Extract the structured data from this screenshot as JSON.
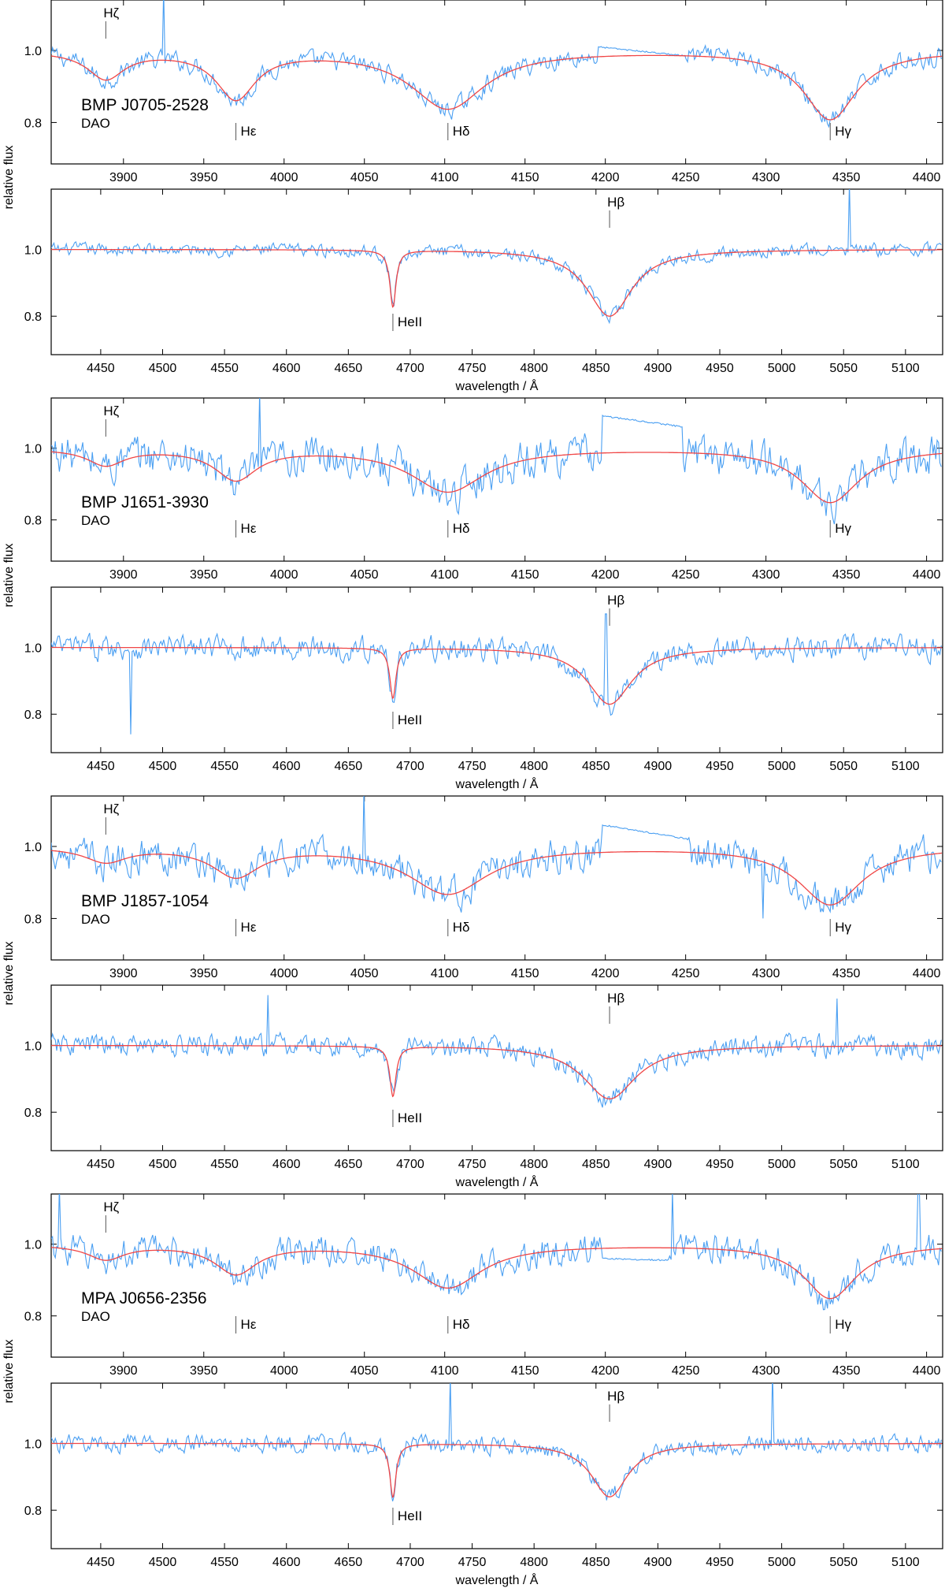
{
  "figure": {
    "ylabel": "relative flux",
    "xlabel": "wavelength / Å"
  },
  "colors": {
    "observed": "#4a9ff2",
    "model": "#f04646",
    "axes": "#000000",
    "marker": "#555555"
  },
  "chart_data": [
    {
      "type": "line",
      "star": "BMP J0705-2528",
      "class": "DAO",
      "panels": [
        {
          "xlim": [
            3855,
            4410
          ],
          "ylim": [
            0.685,
            1.14
          ],
          "xticks": [
            3900,
            3950,
            4000,
            4050,
            4100,
            4150,
            4200,
            4250,
            4300,
            4350,
            4400
          ],
          "yticks": [
            0.8,
            1.0
          ],
          "show_xlabel": false,
          "lines": [
            {
              "label": "Hζ",
              "x": 3889,
              "depth": 0.925,
              "width": 14,
              "pos": "above"
            },
            {
              "label": "Hε",
              "x": 3970,
              "depth": 0.87,
              "width": 15,
              "pos": "below"
            },
            {
              "label": "Hδ",
              "x": 4102,
              "depth": 0.84,
              "width": 28,
              "pos": "below"
            },
            {
              "label": "Hγ",
              "x": 4340,
              "depth": 0.81,
              "width": 20,
              "pos": "below"
            }
          ],
          "noise": 0.022,
          "spikes": [
            {
              "x": 3925,
              "y": 1.17
            }
          ],
          "gap": {
            "x0": 4195,
            "x1": 4250,
            "y0": 1.01,
            "y1": 0.985
          }
        },
        {
          "xlim": [
            4410,
            5130
          ],
          "ylim": [
            0.685,
            1.18
          ],
          "xticks": [
            4450,
            4500,
            4550,
            4600,
            4650,
            4700,
            4750,
            4800,
            4850,
            4900,
            4950,
            5000,
            5050,
            5100
          ],
          "yticks": [
            0.8,
            1.0
          ],
          "show_xlabel": true,
          "lines": [
            {
              "label": "HeII",
              "x": 4686,
              "depth": 0.83,
              "width": 3,
              "pos": "below"
            },
            {
              "label": "Hβ",
              "x": 4861,
              "depth": 0.8,
              "width": 22,
              "pos": "above"
            }
          ],
          "noise": 0.016,
          "spikes": [
            {
              "x": 5055,
              "y": 1.2
            }
          ],
          "gap": null
        }
      ]
    },
    {
      "type": "line",
      "star": "BMP J1651-3930",
      "class": "DAO",
      "panels": [
        {
          "xlim": [
            3855,
            4410
          ],
          "ylim": [
            0.685,
            1.14
          ],
          "xticks": [
            3900,
            3950,
            4000,
            4050,
            4100,
            4150,
            4200,
            4250,
            4300,
            4350,
            4400
          ],
          "yticks": [
            0.8,
            1.0
          ],
          "show_xlabel": false,
          "lines": [
            {
              "label": "Hζ",
              "x": 3889,
              "depth": 0.955,
              "width": 14,
              "pos": "above"
            },
            {
              "label": "Hε",
              "x": 3970,
              "depth": 0.915,
              "width": 16,
              "pos": "below"
            },
            {
              "label": "Hδ",
              "x": 4102,
              "depth": 0.88,
              "width": 28,
              "pos": "below"
            },
            {
              "label": "Hγ",
              "x": 4340,
              "depth": 0.85,
              "width": 22,
              "pos": "below"
            }
          ],
          "noise": 0.045,
          "spikes": [
            {
              "x": 3985,
              "y": 1.16
            }
          ],
          "gap": {
            "x0": 4198,
            "x1": 4248,
            "y0": 1.09,
            "y1": 1.06
          }
        },
        {
          "xlim": [
            4410,
            5130
          ],
          "ylim": [
            0.685,
            1.18
          ],
          "xticks": [
            4450,
            4500,
            4550,
            4600,
            4650,
            4700,
            4750,
            4800,
            4850,
            4900,
            4950,
            5000,
            5050,
            5100
          ],
          "yticks": [
            0.8,
            1.0
          ],
          "show_xlabel": true,
          "lines": [
            {
              "label": "HeII",
              "x": 4686,
              "depth": 0.85,
              "width": 3,
              "pos": "below"
            },
            {
              "label": "Hβ",
              "x": 4861,
              "depth": 0.83,
              "width": 22,
              "pos": "above"
            }
          ],
          "noise": 0.03,
          "spikes": [
            {
              "x": 4474,
              "y": 0.74
            },
            {
              "x": 4858,
              "y": 1.1
            }
          ],
          "gap": null
        }
      ]
    },
    {
      "type": "line",
      "star": "BMP J1857-1054",
      "class": "DAO",
      "panels": [
        {
          "xlim": [
            3855,
            4410
          ],
          "ylim": [
            0.685,
            1.14
          ],
          "xticks": [
            3900,
            3950,
            4000,
            4050,
            4100,
            4150,
            4200,
            4250,
            4300,
            4350,
            4400
          ],
          "yticks": [
            0.8,
            1.0
          ],
          "show_xlabel": false,
          "lines": [
            {
              "label": "Hζ",
              "x": 3889,
              "depth": 0.96,
              "width": 16,
              "pos": "above"
            },
            {
              "label": "Hε",
              "x": 3970,
              "depth": 0.92,
              "width": 18,
              "pos": "below"
            },
            {
              "label": "Hδ",
              "x": 4102,
              "depth": 0.87,
              "width": 30,
              "pos": "below"
            },
            {
              "label": "Hγ",
              "x": 4340,
              "depth": 0.84,
              "width": 24,
              "pos": "below"
            }
          ],
          "noise": 0.04,
          "spikes": [
            {
              "x": 4050,
              "y": 1.16
            },
            {
              "x": 4298,
              "y": 0.8
            }
          ],
          "gap": {
            "x0": 4198,
            "x1": 4252,
            "y0": 1.06,
            "y1": 1.02
          }
        },
        {
          "xlim": [
            4410,
            5130
          ],
          "ylim": [
            0.685,
            1.18
          ],
          "xticks": [
            4450,
            4500,
            4550,
            4600,
            4650,
            4700,
            4750,
            4800,
            4850,
            4900,
            4950,
            5000,
            5050,
            5100
          ],
          "yticks": [
            0.8,
            1.0
          ],
          "show_xlabel": true,
          "lines": [
            {
              "label": "HeII",
              "x": 4686,
              "depth": 0.85,
              "width": 3,
              "pos": "below"
            },
            {
              "label": "Hβ",
              "x": 4861,
              "depth": 0.84,
              "width": 26,
              "pos": "above"
            }
          ],
          "noise": 0.028,
          "spikes": [
            {
              "x": 4585,
              "y": 1.15
            },
            {
              "x": 5045,
              "y": 1.14
            }
          ],
          "gap": null
        }
      ]
    },
    {
      "type": "line",
      "star": "MPA J0656-2356",
      "class": "DAO",
      "panels": [
        {
          "xlim": [
            3855,
            4410
          ],
          "ylim": [
            0.685,
            1.14
          ],
          "xticks": [
            3900,
            3950,
            4000,
            4050,
            4100,
            4150,
            4200,
            4250,
            4300,
            4350,
            4400
          ],
          "yticks": [
            0.8,
            1.0
          ],
          "show_xlabel": false,
          "lines": [
            {
              "label": "Hζ",
              "x": 3889,
              "depth": 0.96,
              "width": 14,
              "pos": "above"
            },
            {
              "label": "Hε",
              "x": 3970,
              "depth": 0.92,
              "width": 16,
              "pos": "below"
            },
            {
              "label": "Hδ",
              "x": 4102,
              "depth": 0.88,
              "width": 26,
              "pos": "below"
            },
            {
              "label": "Hγ",
              "x": 4340,
              "depth": 0.85,
              "width": 20,
              "pos": "below"
            }
          ],
          "noise": 0.035,
          "spikes": [
            {
              "x": 3860,
              "y": 1.16
            },
            {
              "x": 4242,
              "y": 1.15
            },
            {
              "x": 4395,
              "y": 1.16
            }
          ],
          "gap": {
            "x0": 4198,
            "x1": 4240,
            "y0": 0.96,
            "y1": 0.955
          }
        },
        {
          "xlim": [
            4410,
            5130
          ],
          "ylim": [
            0.685,
            1.18
          ],
          "xticks": [
            4450,
            4500,
            4550,
            4600,
            4650,
            4700,
            4750,
            4800,
            4850,
            4900,
            4950,
            5000,
            5050,
            5100
          ],
          "yticks": [
            0.8,
            1.0
          ],
          "show_xlabel": true,
          "lines": [
            {
              "label": "HeII",
              "x": 4686,
              "depth": 0.84,
              "width": 3,
              "pos": "below"
            },
            {
              "label": "Hβ",
              "x": 4861,
              "depth": 0.84,
              "width": 18,
              "pos": "above"
            }
          ],
          "noise": 0.022,
          "spikes": [
            {
              "x": 4732,
              "y": 1.2
            },
            {
              "x": 4993,
              "y": 1.22
            }
          ],
          "gap": null
        }
      ]
    }
  ]
}
